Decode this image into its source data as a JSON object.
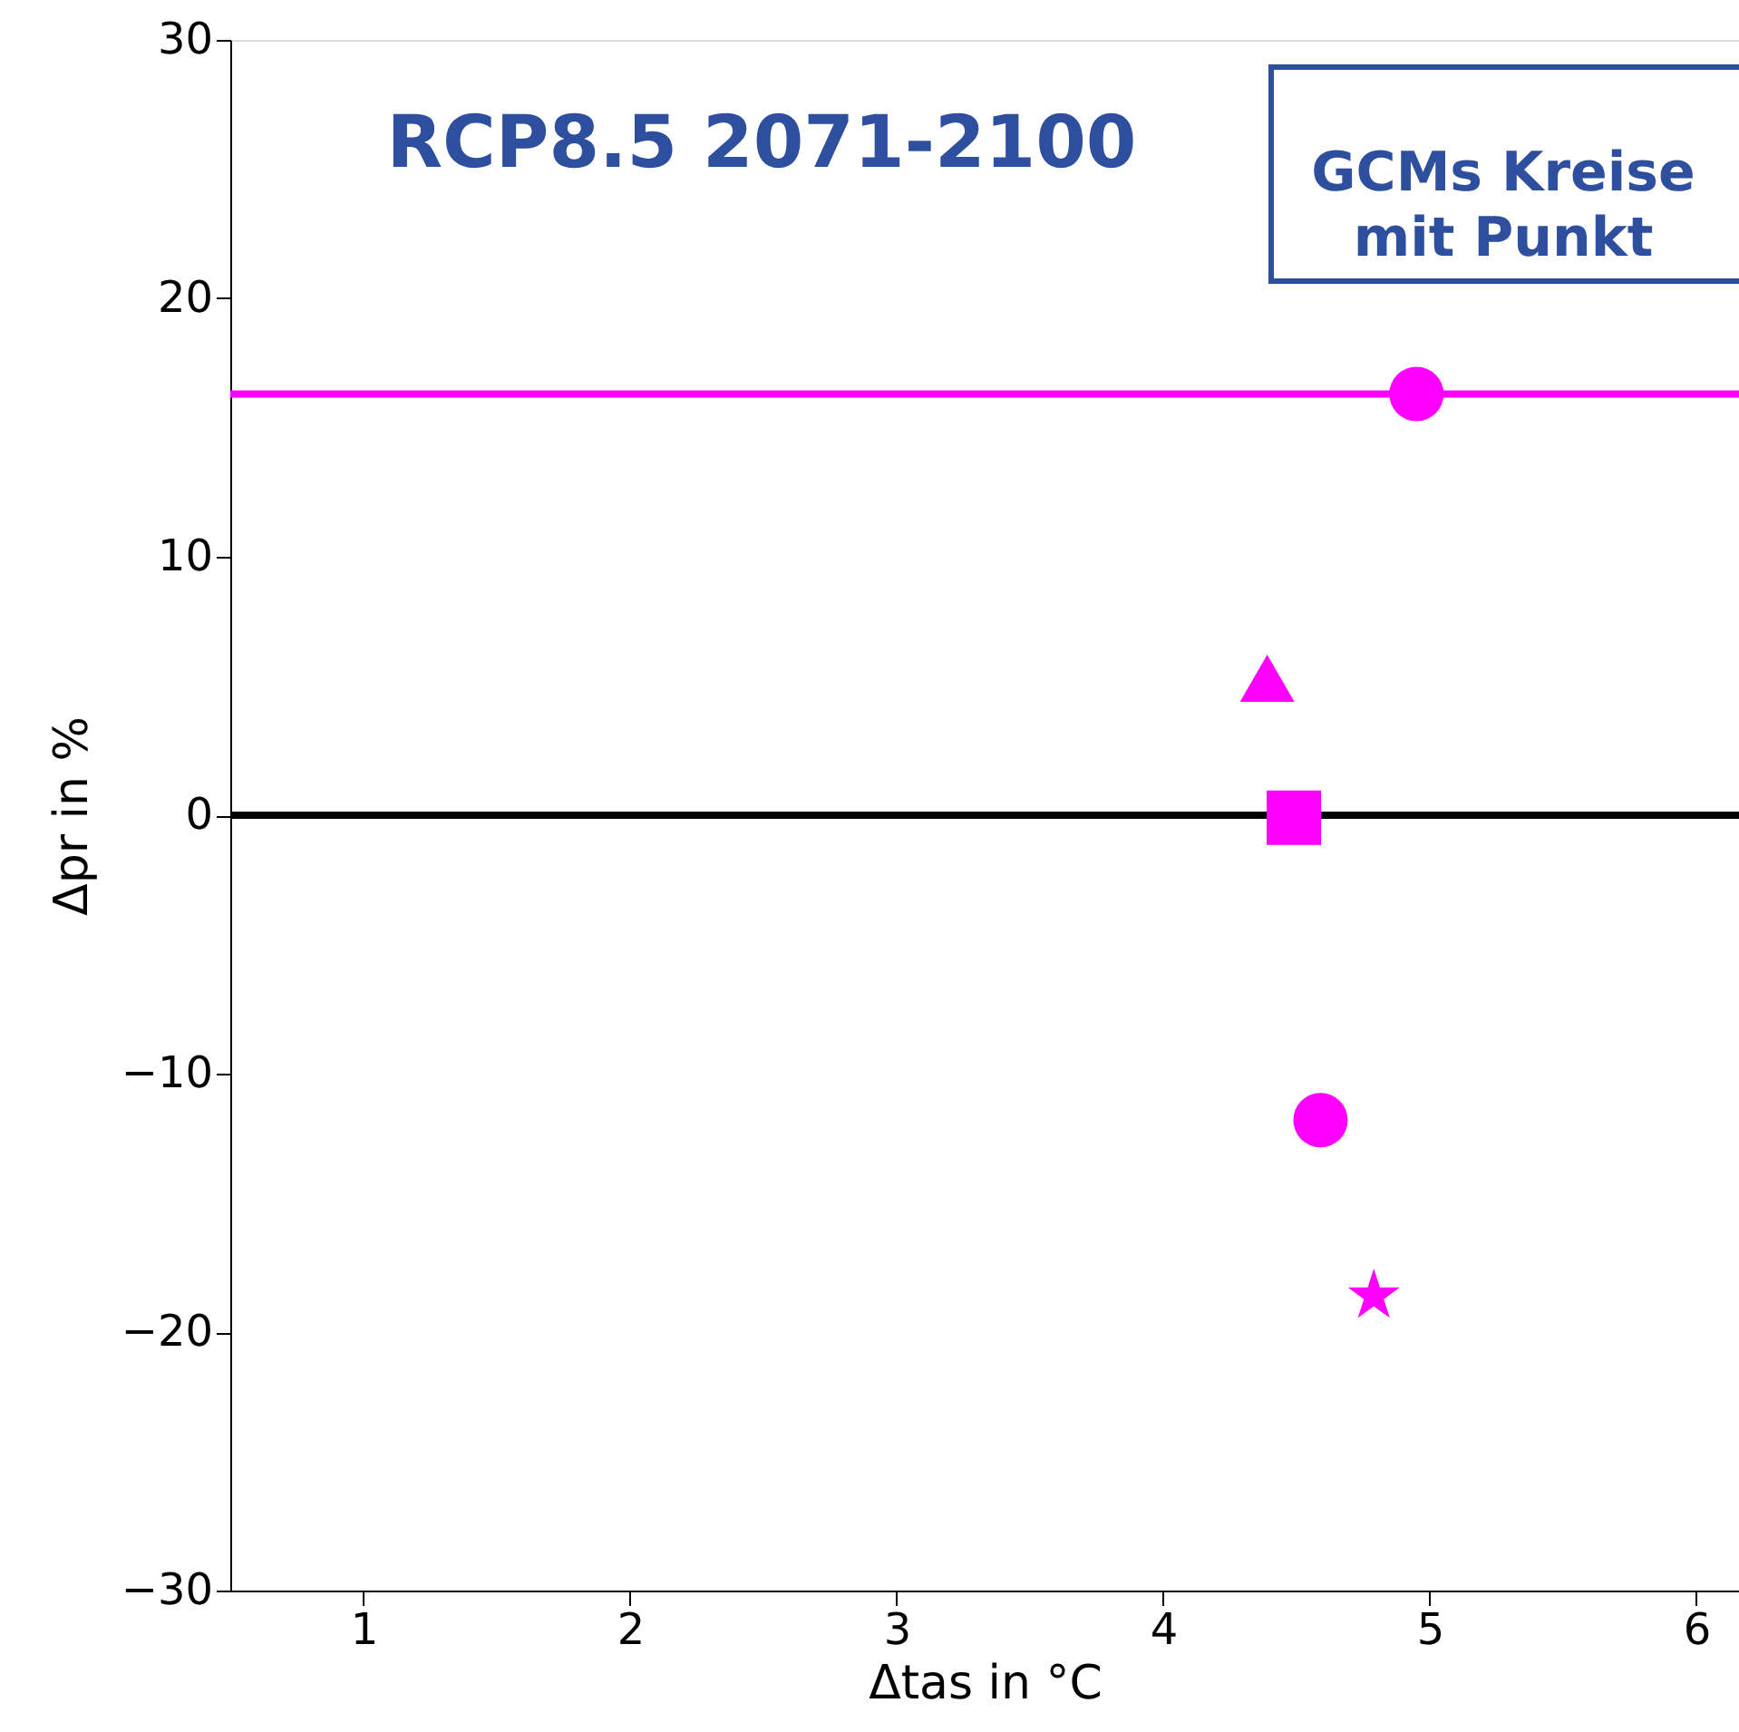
{
  "chart_data": {
    "type": "scatter",
    "xlabel": "Δtas in °C",
    "ylabel": "Δpr in %",
    "annotations": [
      "RCP8.5 2071-2100",
      "GCMs Kreise\nmit Punkt"
    ],
    "xlim": [
      0.5,
      6.16
    ],
    "xticks": [
      1,
      2,
      3,
      4,
      5,
      6
    ],
    "ylim": [
      -30,
      30
    ],
    "yticks": [
      -30,
      -20,
      -10,
      0,
      10,
      20,
      30
    ],
    "series": [
      {
        "color": "#ff00ff",
        "marker": "circle",
        "x": [
          4.95
        ],
        "values": [
          16.3
        ]
      },
      {
        "color": "#ff00ff",
        "marker": "triangle",
        "x": [
          4.39
        ],
        "values": [
          5.3
        ]
      },
      {
        "color": "#ff00ff",
        "marker": "square",
        "x": [
          4.49
        ],
        "values": [
          -0.1
        ]
      },
      {
        "color": "#ff00ff",
        "marker": "circle",
        "x": [
          4.59
        ],
        "values": [
          -11.8
        ]
      },
      {
        "color": "#ff00ff",
        "marker": "star",
        "x": [
          4.79
        ],
        "values": [
          -18.6
        ]
      }
    ],
    "ref_lines": [
      {
        "axis": "y",
        "value": 16.3,
        "color": "#ff00ff",
        "line_style": "solid"
      },
      {
        "axis": "y",
        "value": 0,
        "color": "#000000",
        "line_style": "solid"
      }
    ]
  }
}
